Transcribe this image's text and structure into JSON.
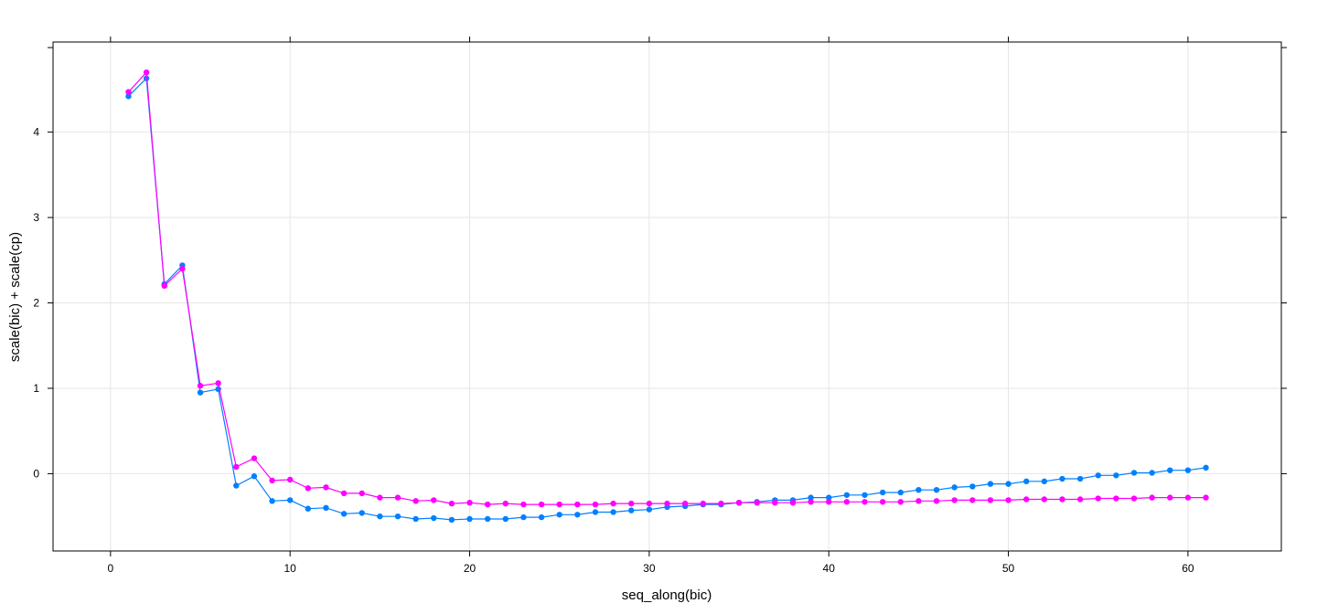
{
  "chart_data": {
    "type": "line",
    "title": "",
    "xlabel": "seq_along(bic)",
    "ylabel": "scale(bic) + scale(cp)",
    "xlim": [
      -3.2,
      65.2
    ],
    "ylim": [
      -0.905,
      5.055
    ],
    "x_ticks": [
      0,
      10,
      20,
      30,
      40,
      50,
      60
    ],
    "y_ticks": [
      0,
      1,
      2,
      3,
      4
    ],
    "grid": true,
    "x": [
      1,
      2,
      3,
      4,
      5,
      6,
      7,
      8,
      9,
      10,
      11,
      12,
      13,
      14,
      15,
      16,
      17,
      18,
      19,
      20,
      21,
      22,
      23,
      24,
      25,
      26,
      27,
      28,
      29,
      30,
      31,
      32,
      33,
      34,
      35,
      36,
      37,
      38,
      39,
      40,
      41,
      42,
      43,
      44,
      45,
      46,
      47,
      48,
      49,
      50,
      51,
      52,
      53,
      54,
      55,
      56,
      57,
      58,
      59,
      60,
      61
    ],
    "series": [
      {
        "color": "#0080ff",
        "values": [
          4.42,
          4.63,
          2.22,
          2.44,
          0.95,
          0.99,
          -0.14,
          -0.03,
          -0.32,
          -0.31,
          -0.41,
          -0.4,
          -0.47,
          -0.46,
          -0.5,
          -0.5,
          -0.53,
          -0.52,
          -0.54,
          -0.53,
          -0.53,
          -0.53,
          -0.51,
          -0.51,
          -0.48,
          -0.48,
          -0.45,
          -0.45,
          -0.43,
          -0.42,
          -0.39,
          -0.38,
          -0.36,
          -0.36,
          -0.34,
          -0.33,
          -0.31,
          -0.31,
          -0.28,
          -0.28,
          -0.25,
          -0.25,
          -0.22,
          -0.22,
          -0.19,
          -0.19,
          -0.16,
          -0.15,
          -0.12,
          -0.12,
          -0.09,
          -0.09,
          -0.06,
          -0.06,
          -0.02,
          -0.02,
          0.01,
          0.01,
          0.04,
          0.04,
          0.07
        ]
      },
      {
        "color": "#ff00ff",
        "values": [
          4.47,
          4.7,
          2.2,
          2.4,
          1.03,
          1.06,
          0.08,
          0.18,
          -0.08,
          -0.07,
          -0.17,
          -0.16,
          -0.23,
          -0.23,
          -0.28,
          -0.28,
          -0.32,
          -0.31,
          -0.35,
          -0.34,
          -0.36,
          -0.35,
          -0.36,
          -0.36,
          -0.36,
          -0.36,
          -0.36,
          -0.35,
          -0.35,
          -0.35,
          -0.35,
          -0.35,
          -0.35,
          -0.35,
          -0.34,
          -0.34,
          -0.34,
          -0.34,
          -0.33,
          -0.33,
          -0.33,
          -0.33,
          -0.33,
          -0.33,
          -0.32,
          -0.32,
          -0.31,
          -0.31,
          -0.31,
          -0.31,
          -0.3,
          -0.3,
          -0.3,
          -0.3,
          -0.29,
          -0.29,
          -0.29,
          -0.28,
          -0.28,
          -0.28,
          -0.28
        ]
      }
    ]
  }
}
